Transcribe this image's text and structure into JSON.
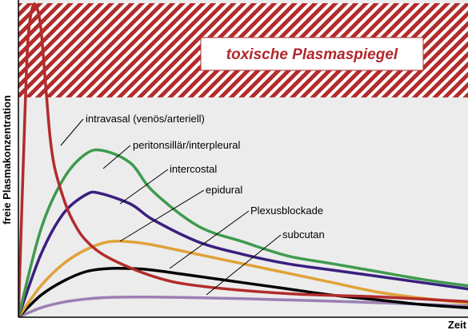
{
  "chart_data": {
    "type": "line",
    "xlabel": "Zeit",
    "ylabel": "freie Plasmakonzentration",
    "xlim": [
      0,
      100
    ],
    "ylim": [
      0,
      100
    ],
    "grid": false,
    "legend": "none",
    "toxic_zone": {
      "label": "toxische Plasmaspiegel",
      "y_from": 70,
      "y_to": 100,
      "color": "#b22c2c"
    },
    "plot_background": "#ececec",
    "series": [
      {
        "name": "intravasal (venös/arteriell)",
        "color": "#b22c2c",
        "x": [
          0,
          1,
          2,
          3,
          4,
          5,
          6,
          7,
          8,
          10,
          12,
          15,
          20,
          30,
          40,
          60,
          80,
          100
        ],
        "y": [
          0,
          45,
          85,
          98,
          99,
          92,
          75,
          58,
          48,
          38,
          31,
          24.5,
          19,
          13,
          10,
          7.5,
          6.5,
          5
        ]
      },
      {
        "name": "peritonsillär/interpleural",
        "color": "#3f9a4e",
        "x": [
          0,
          5,
          10,
          15,
          19,
          25,
          30,
          40,
          50,
          60,
          70,
          80,
          90,
          100
        ],
        "y": [
          0,
          28,
          44,
          52,
          53,
          49,
          40,
          29,
          24,
          19.5,
          17,
          14.5,
          12,
          10
        ]
      },
      {
        "name": "intercostal",
        "color": "#3a1f7e",
        "x": [
          0,
          5,
          10,
          15,
          18,
          25,
          30,
          40,
          50,
          60,
          70,
          80,
          90,
          100
        ],
        "y": [
          0,
          20,
          33,
          39,
          39.5,
          36,
          31,
          24,
          20,
          17,
          15,
          13,
          11,
          9
        ]
      },
      {
        "name": "epidural",
        "color": "#e0a238",
        "x": [
          0,
          5,
          10,
          15,
          20,
          25,
          30,
          40,
          50,
          60,
          70,
          80,
          90,
          100
        ],
        "y": [
          0,
          10,
          17,
          21.5,
          24,
          24,
          23,
          20,
          17,
          14,
          11,
          8,
          6,
          4.5
        ]
      },
      {
        "name": "Plexusblockade",
        "color": "#000000",
        "x": [
          0,
          5,
          10,
          15,
          20,
          25,
          30,
          40,
          50,
          60,
          70,
          80,
          90,
          100
        ],
        "y": [
          0,
          7,
          11.5,
          14.5,
          15.5,
          15.5,
          15,
          13,
          11,
          9,
          7,
          5.5,
          4,
          3
        ]
      },
      {
        "name": "subcutan",
        "color": "#9b80b3",
        "x": [
          0,
          5,
          10,
          15,
          20,
          25,
          30,
          40,
          50,
          60,
          70,
          80,
          90,
          100
        ],
        "y": [
          0,
          3,
          4.8,
          5.8,
          6.3,
          6.4,
          6.4,
          6.2,
          5.9,
          5.5,
          5.1,
          4.6,
          4.1,
          3.6
        ]
      }
    ]
  }
}
